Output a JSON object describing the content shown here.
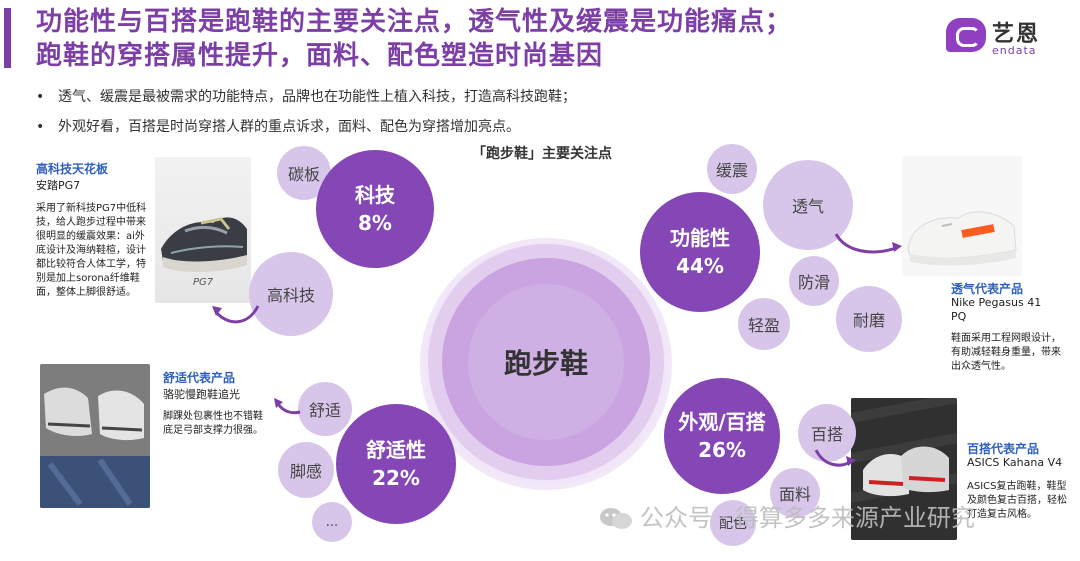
{
  "header": {
    "title_line1": "功能性与百搭是跑鞋的主要关注点，透气性及缓震是功能痛点；",
    "title_line2": "跑鞋的穿搭属性提升，面料、配色塑造时尚基因",
    "accent_color": "#7d3fa6"
  },
  "logo": {
    "cn": "艺恩",
    "en": "endata",
    "icon": "endata-logo-icon"
  },
  "bullets": [
    {
      "mark": "•",
      "text": "透气、缓震是最被需求的功能特点，品牌也在功能性上植入科技，打造高科技跑鞋；"
    },
    {
      "mark": "•",
      "text": "外观好看，百搭是时尚穿搭人群的重点诉求，面料、配色为穿搭增加亮点。"
    }
  ],
  "chart": {
    "title": "「跑步鞋」主要关注点",
    "center": "跑步鞋",
    "categories": [
      {
        "name": "科技",
        "value": "8%",
        "keywords": [
          "碳板",
          "高科技"
        ]
      },
      {
        "name": "功能性",
        "value": "44%",
        "keywords": [
          "缓震",
          "透气",
          "防滑",
          "轻盈",
          "耐磨"
        ]
      },
      {
        "name": "舒适性",
        "value": "22%",
        "keywords": [
          "舒适",
          "脚感",
          "..."
        ]
      },
      {
        "name": "外观/百搭",
        "value": "26%",
        "keywords": [
          "百搭",
          "面料",
          "配色"
        ]
      }
    ]
  },
  "cards": {
    "tech": {
      "title": "高科技天花板",
      "product": "安踏PG7",
      "desc": "采用了新科技PG7中低科技，给人跑步过程中带来很明显的缓震效果：ai外底设计及海纳鞋楦，设计都比较符合人体工学，特别是加上sorona纤维鞋面，整体上脚很舒适。",
      "img_label": "PG7"
    },
    "comfort": {
      "title": "舒适代表产品",
      "product": "骆驼慢跑鞋追光",
      "desc": "脚踝处包裹性也不错鞋底足弓部支撑力很强。"
    },
    "breath": {
      "title": "透气代表产品",
      "product_line1": "Nike Pegasus 41",
      "product_line2": "PQ",
      "desc": "鞋面采用工程网眼设计，有助减轻鞋身重量，带来出众透气性。"
    },
    "match": {
      "title": "百搭代表产品",
      "product": "ASICS Kahana V4",
      "desc": "ASICS复古跑鞋，鞋型及颜色复古百搭，轻松打造复古风格。"
    }
  },
  "watermark": {
    "text": "公众号 · 得算多多来源产业研究",
    "icon": "wechat-icon"
  }
}
